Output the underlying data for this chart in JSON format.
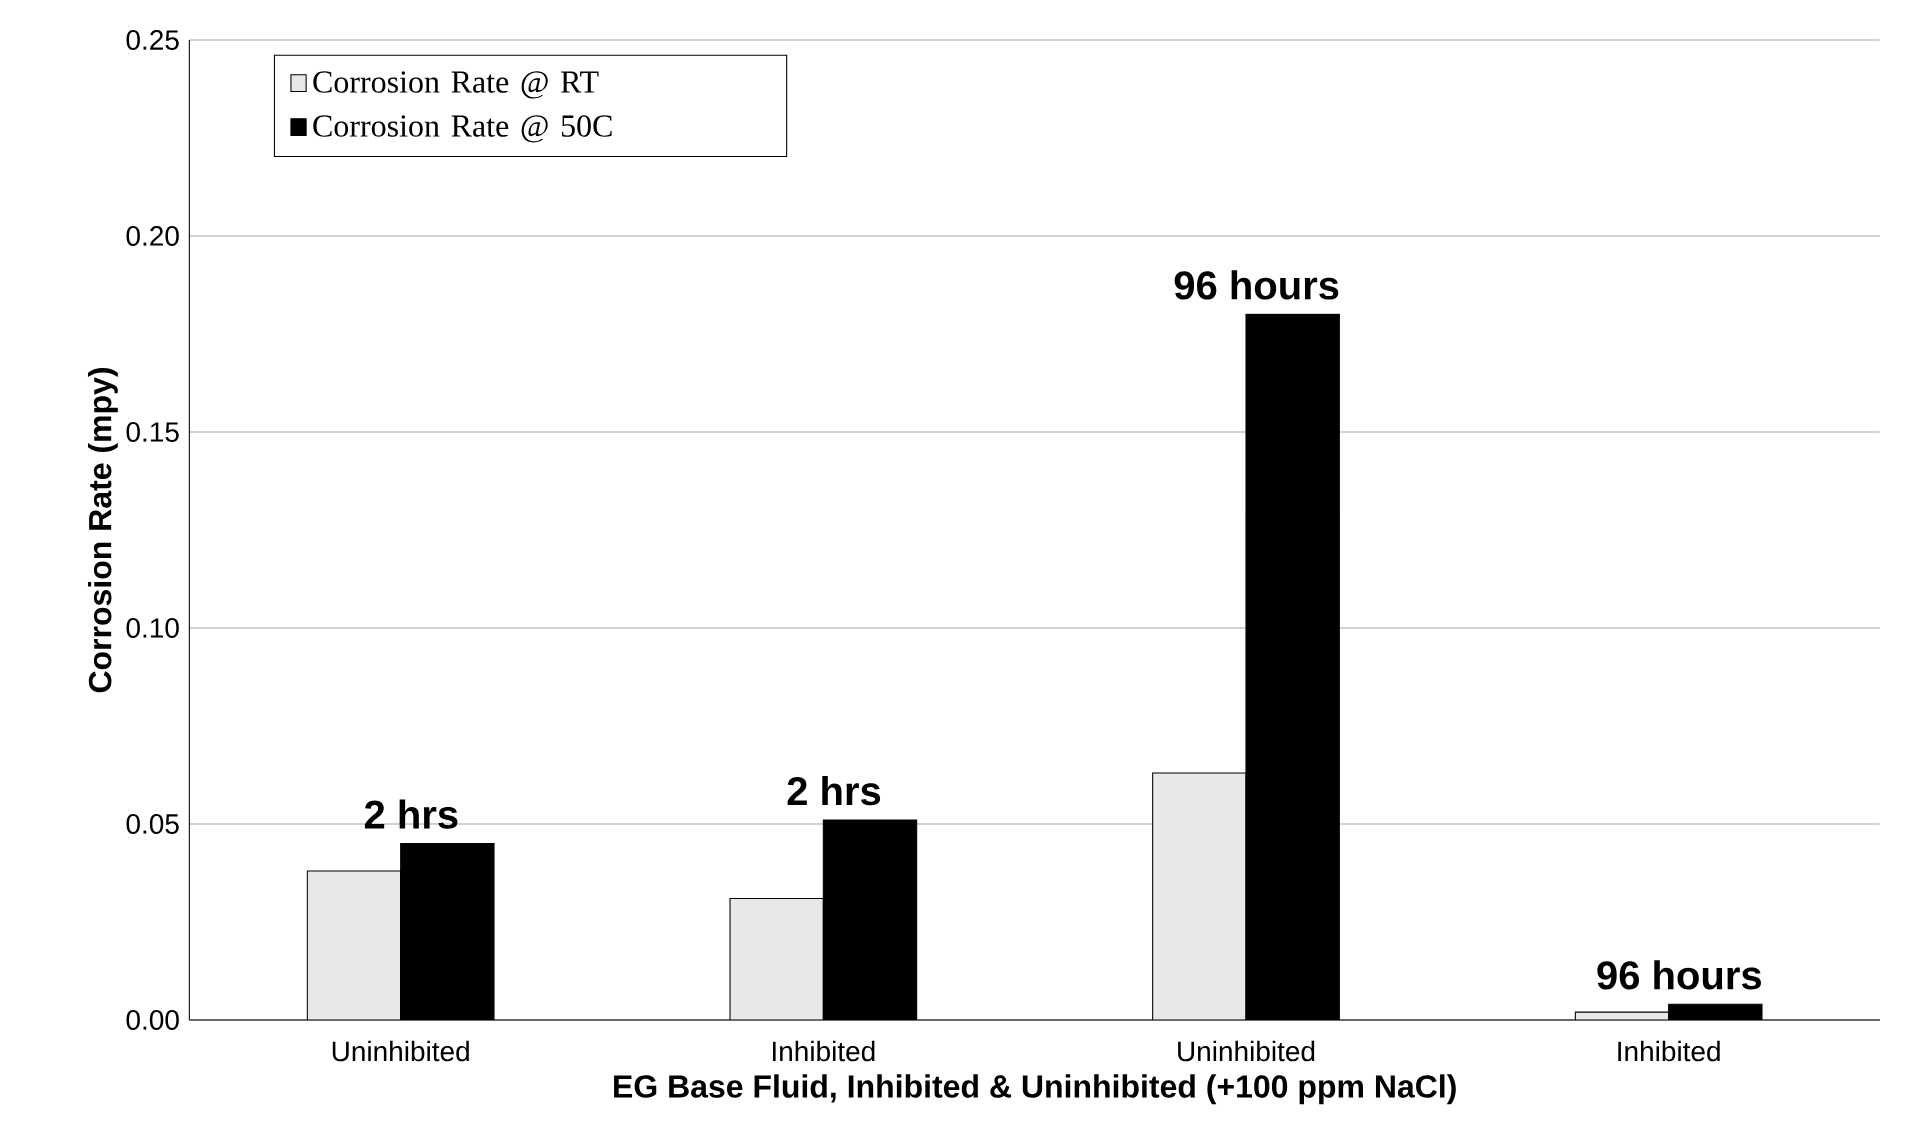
{
  "chart_data": {
    "type": "bar",
    "xlabel": "EG Base Fluid, Inhibited & Uninhibited (+100 ppm NaCl)",
    "ylabel": "Corrosion  Rate (mpy)",
    "categories": [
      "Uninhibited",
      "Inhibited",
      "Uninhibited",
      "Inhibited"
    ],
    "series": [
      {
        "name": "Corrosion Rate @ RT",
        "color": "#e8e8e8",
        "values": [
          0.038,
          0.031,
          0.063,
          0.002
        ]
      },
      {
        "name": "Corrosion Rate @ 50C",
        "color": "#000000",
        "values": [
          0.045,
          0.051,
          0.18,
          0.004
        ]
      }
    ],
    "ylim": [
      0,
      0.25
    ],
    "yticks": [
      {
        "value": 0,
        "label": "0.00"
      },
      {
        "value": 0.05,
        "label": "0.05"
      },
      {
        "value": 0.1,
        "label": "0.10"
      },
      {
        "value": 0.15,
        "label": "0.15"
      },
      {
        "value": 0.2,
        "label": "0.20"
      },
      {
        "value": 0.25,
        "label": "0.25"
      }
    ],
    "grid": "y",
    "legend": "top left",
    "annotations": [
      "2 hrs",
      "2 hrs",
      "96 hours",
      "96 hours"
    ]
  }
}
